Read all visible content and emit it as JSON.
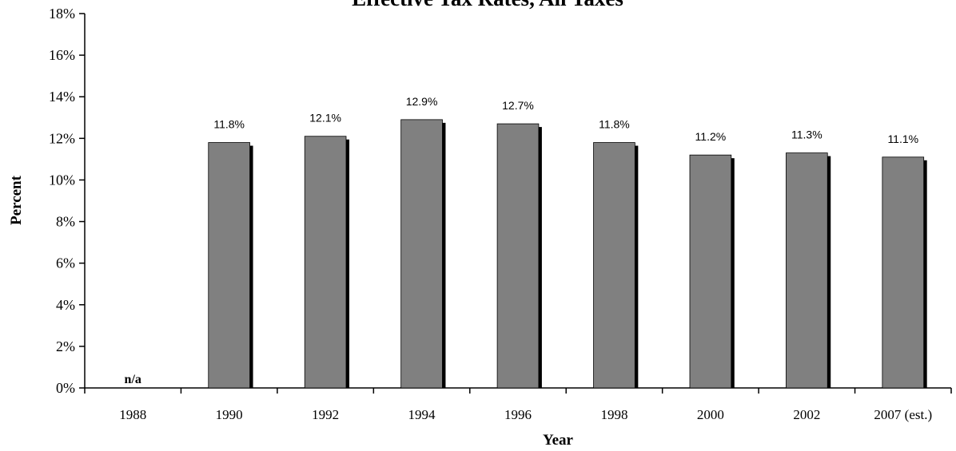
{
  "chart_data": {
    "type": "bar",
    "title": "Effective Tax Rates, All Taxes",
    "xlabel": "Year",
    "ylabel": "Percent",
    "ylim": [
      0,
      18
    ],
    "yticks": [
      "0%",
      "2%",
      "4%",
      "6%",
      "8%",
      "10%",
      "12%",
      "14%",
      "16%",
      "18%"
    ],
    "categories": [
      "1988",
      "1990",
      "1992",
      "1994",
      "1996",
      "1998",
      "2000",
      "2002",
      "2007 (est.)"
    ],
    "values": [
      null,
      11.8,
      12.1,
      12.9,
      12.7,
      11.8,
      11.2,
      11.3,
      11.1
    ],
    "data_labels": [
      "n/a",
      "11.8%",
      "12.1%",
      "12.9%",
      "12.7%",
      "11.8%",
      "11.2%",
      "11.3%",
      "11.1%"
    ],
    "grid": false,
    "legend": "none",
    "colors": {
      "bar": "#808080",
      "shadow": "#000000",
      "axis": "#000000"
    }
  }
}
